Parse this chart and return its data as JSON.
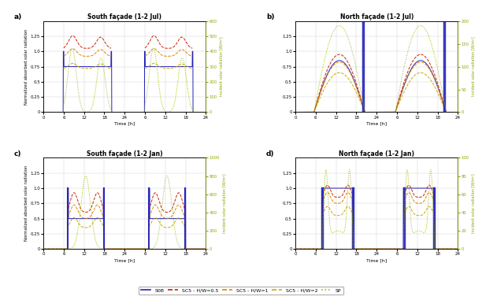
{
  "title_a": "South façade (1-2 Jul)",
  "title_b": "North façade (1-2 Jul)",
  "title_c": "South façade (1-2 Jan)",
  "title_d": "North façade (1-2 Jan)",
  "ylabel_left": "Normalized absorbed solar radiation",
  "ylabel_right_a": "Incident solar radiation [W/m²]",
  "xlabel_a": "Time [h]",
  "xlabel_b": "Time [h]",
  "xlabel_c": "Time [h]",
  "xlabel_d": "Time [h]",
  "legend_labels": [
    "S0B",
    "SC5 - H/W=0.5",
    "SC5 - H/W=1",
    "SC5 - H/W=2",
    "SP"
  ],
  "c0": "#2222bb",
  "c1": "#cc2200",
  "c2": "#dd8800",
  "c3": "#ccaa00",
  "c4": "#99bb00",
  "lw": 0.7
}
